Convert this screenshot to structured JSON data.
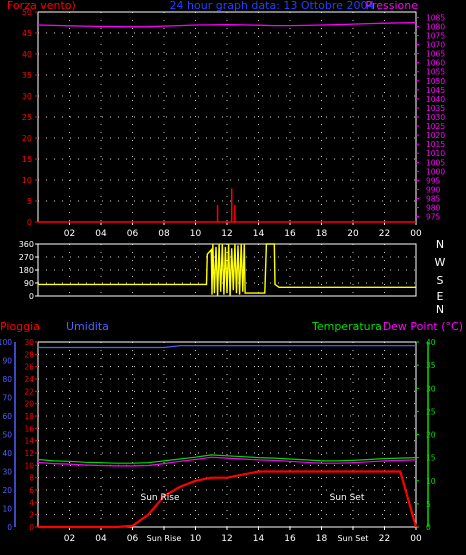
{
  "header": {
    "left_label": "Forza vento)",
    "title": "24 hour graph data: 13 Ottobre 2004",
    "right_label": "Pressione"
  },
  "x_ticks": [
    "02",
    "04",
    "06",
    "08",
    "10",
    "12",
    "14",
    "16",
    "18",
    "20",
    "22",
    "00"
  ],
  "panel3_x_ticks": [
    "02",
    "04",
    "06",
    "Sun Rise",
    "10",
    "12",
    "14",
    "16",
    "18",
    "Sun Set",
    "22",
    "00"
  ],
  "direction_labels": [
    "N",
    "W",
    "S",
    "E",
    "N"
  ],
  "panel3": {
    "left_label": "Pioggia",
    "left2_label": "Umidita",
    "right2_label": "Temperatura",
    "right_label": "Dew Point (°C)",
    "sunrise_label": "Sun Rise",
    "sunset_label": "Sun Set"
  },
  "colors": {
    "wind": "#ff0000",
    "pressure": "#ff00ff",
    "direction": "#ffff00",
    "rain": "#ff0000",
    "humidity": "#5060ff",
    "temperature": "#00dd00",
    "dewpoint": "#ff00ff",
    "grid": "#ffffff",
    "background": "#000000"
  },
  "chart_data": [
    {
      "type": "line",
      "x": [
        0,
        1,
        2,
        3,
        4,
        5,
        6,
        7,
        8,
        9,
        10,
        11,
        12,
        13,
        14,
        15,
        16,
        17,
        18,
        19,
        20,
        21,
        22,
        23,
        24
      ],
      "series": [
        {
          "name": "Forza vento)",
          "axis": "left",
          "values": [
            0,
            0,
            0,
            0,
            0,
            0,
            0,
            0,
            0,
            0,
            0,
            0,
            0,
            0,
            0,
            0,
            0,
            0,
            0,
            0,
            0,
            0,
            0,
            0,
            0
          ],
          "spikes": [
            [
              11.4,
              4
            ],
            [
              12.3,
              8
            ],
            [
              12.5,
              4
            ]
          ]
        },
        {
          "name": "Pressione",
          "axis": "right",
          "values": [
            1080.8,
            1080.6,
            1080.4,
            1080.2,
            1080.0,
            1079.9,
            1079.8,
            1079.9,
            1080.2,
            1080.5,
            1080.8,
            1080.9,
            1081.0,
            1080.9,
            1080.7,
            1080.5,
            1080.5,
            1080.6,
            1080.8,
            1081.0,
            1081.3,
            1081.6,
            1081.8,
            1082.0,
            1082.1
          ]
        }
      ],
      "ylim": [
        0,
        50
      ],
      "y_ticks": [
        0,
        5,
        10,
        15,
        20,
        25,
        30,
        35,
        40,
        45,
        50
      ],
      "y2lim": [
        972,
        1088
      ],
      "y2_ticks": [
        975,
        980,
        985,
        990,
        995,
        1000,
        1005,
        1010,
        1015,
        1020,
        1025,
        1030,
        1035,
        1040,
        1045,
        1050,
        1055,
        1060,
        1065,
        1070,
        1075,
        1080,
        1085
      ]
    },
    {
      "type": "line",
      "series": [
        {
          "name": "direction",
          "points": [
            [
              0,
              80
            ],
            [
              10.7,
              80
            ],
            [
              10.75,
              290
            ],
            [
              11.0,
              320
            ],
            [
              11.05,
              10
            ],
            [
              11.1,
              360
            ],
            [
              11.2,
              20
            ],
            [
              11.3,
              340
            ],
            [
              11.4,
              0
            ],
            [
              11.5,
              360
            ],
            [
              11.6,
              30
            ],
            [
              11.7,
              360
            ],
            [
              11.8,
              10
            ],
            [
              11.9,
              340
            ],
            [
              12.0,
              20
            ],
            [
              12.1,
              360
            ],
            [
              12.2,
              0
            ],
            [
              12.3,
              330
            ],
            [
              12.4,
              40
            ],
            [
              12.5,
              360
            ],
            [
              12.6,
              20
            ],
            [
              12.7,
              350
            ],
            [
              12.8,
              10
            ],
            [
              12.9,
              360
            ],
            [
              13.0,
              30
            ],
            [
              13.1,
              360
            ],
            [
              13.15,
              20
            ],
            [
              13.2,
              20
            ],
            [
              14.4,
              20
            ],
            [
              14.5,
              360
            ],
            [
              15.0,
              360
            ],
            [
              15.05,
              80
            ],
            [
              15.3,
              60
            ],
            [
              24,
              60
            ]
          ]
        }
      ],
      "ylim": [
        0,
        360
      ],
      "y_ticks": [
        0,
        90,
        180,
        270,
        360
      ]
    },
    {
      "type": "line",
      "x": [
        0,
        1,
        2,
        3,
        4,
        5,
        6,
        7,
        8,
        9,
        10,
        11,
        12,
        13,
        14,
        15,
        16,
        17,
        18,
        19,
        20,
        21,
        22,
        23,
        24
      ],
      "series": [
        {
          "name": "Pioggia",
          "axis": "left",
          "values": [
            0,
            0,
            0,
            0,
            0,
            0,
            0.2,
            2,
            5,
            6.5,
            7.5,
            8,
            8,
            8.5,
            9,
            9,
            9,
            9,
            9,
            9,
            9,
            9,
            9,
            9,
            0
          ]
        },
        {
          "name": "Umidita",
          "axis": "left",
          "values": [
            97,
            97,
            97,
            97,
            97,
            97,
            97,
            97,
            97,
            98,
            98,
            98,
            98,
            98,
            98,
            98,
            98,
            98,
            98,
            98,
            98,
            98,
            98,
            98,
            98
          ]
        },
        {
          "name": "Temperatura",
          "axis": "right",
          "values": [
            14.6,
            14.3,
            14.2,
            14.0,
            13.9,
            13.8,
            13.8,
            13.9,
            14.3,
            14.7,
            15.1,
            15.6,
            15.4,
            15.2,
            15.0,
            14.9,
            14.7,
            14.5,
            14.3,
            14.3,
            14.4,
            14.6,
            14.8,
            14.9,
            15.0
          ]
        },
        {
          "name": "Dew Point (°C)",
          "axis": "right",
          "values": [
            14.0,
            13.7,
            13.6,
            13.4,
            13.3,
            13.2,
            13.2,
            13.3,
            13.7,
            14.2,
            14.6,
            15.1,
            14.9,
            14.7,
            14.5,
            14.4,
            14.2,
            14.0,
            13.8,
            13.8,
            13.9,
            14.1,
            14.3,
            14.4,
            14.5
          ]
        }
      ],
      "ylim": [
        0,
        30
      ],
      "y_ticks": [
        0,
        2,
        4,
        6,
        8,
        10,
        12,
        14,
        16,
        18,
        20,
        22,
        24,
        26,
        28,
        30
      ],
      "humidity_ticks": [
        0,
        10,
        20,
        30,
        40,
        50,
        60,
        70,
        80,
        90,
        100
      ],
      "y2lim": [
        0,
        40
      ],
      "y2_ticks": [
        0,
        5,
        10,
        15,
        20,
        25,
        30,
        35,
        40
      ]
    }
  ]
}
